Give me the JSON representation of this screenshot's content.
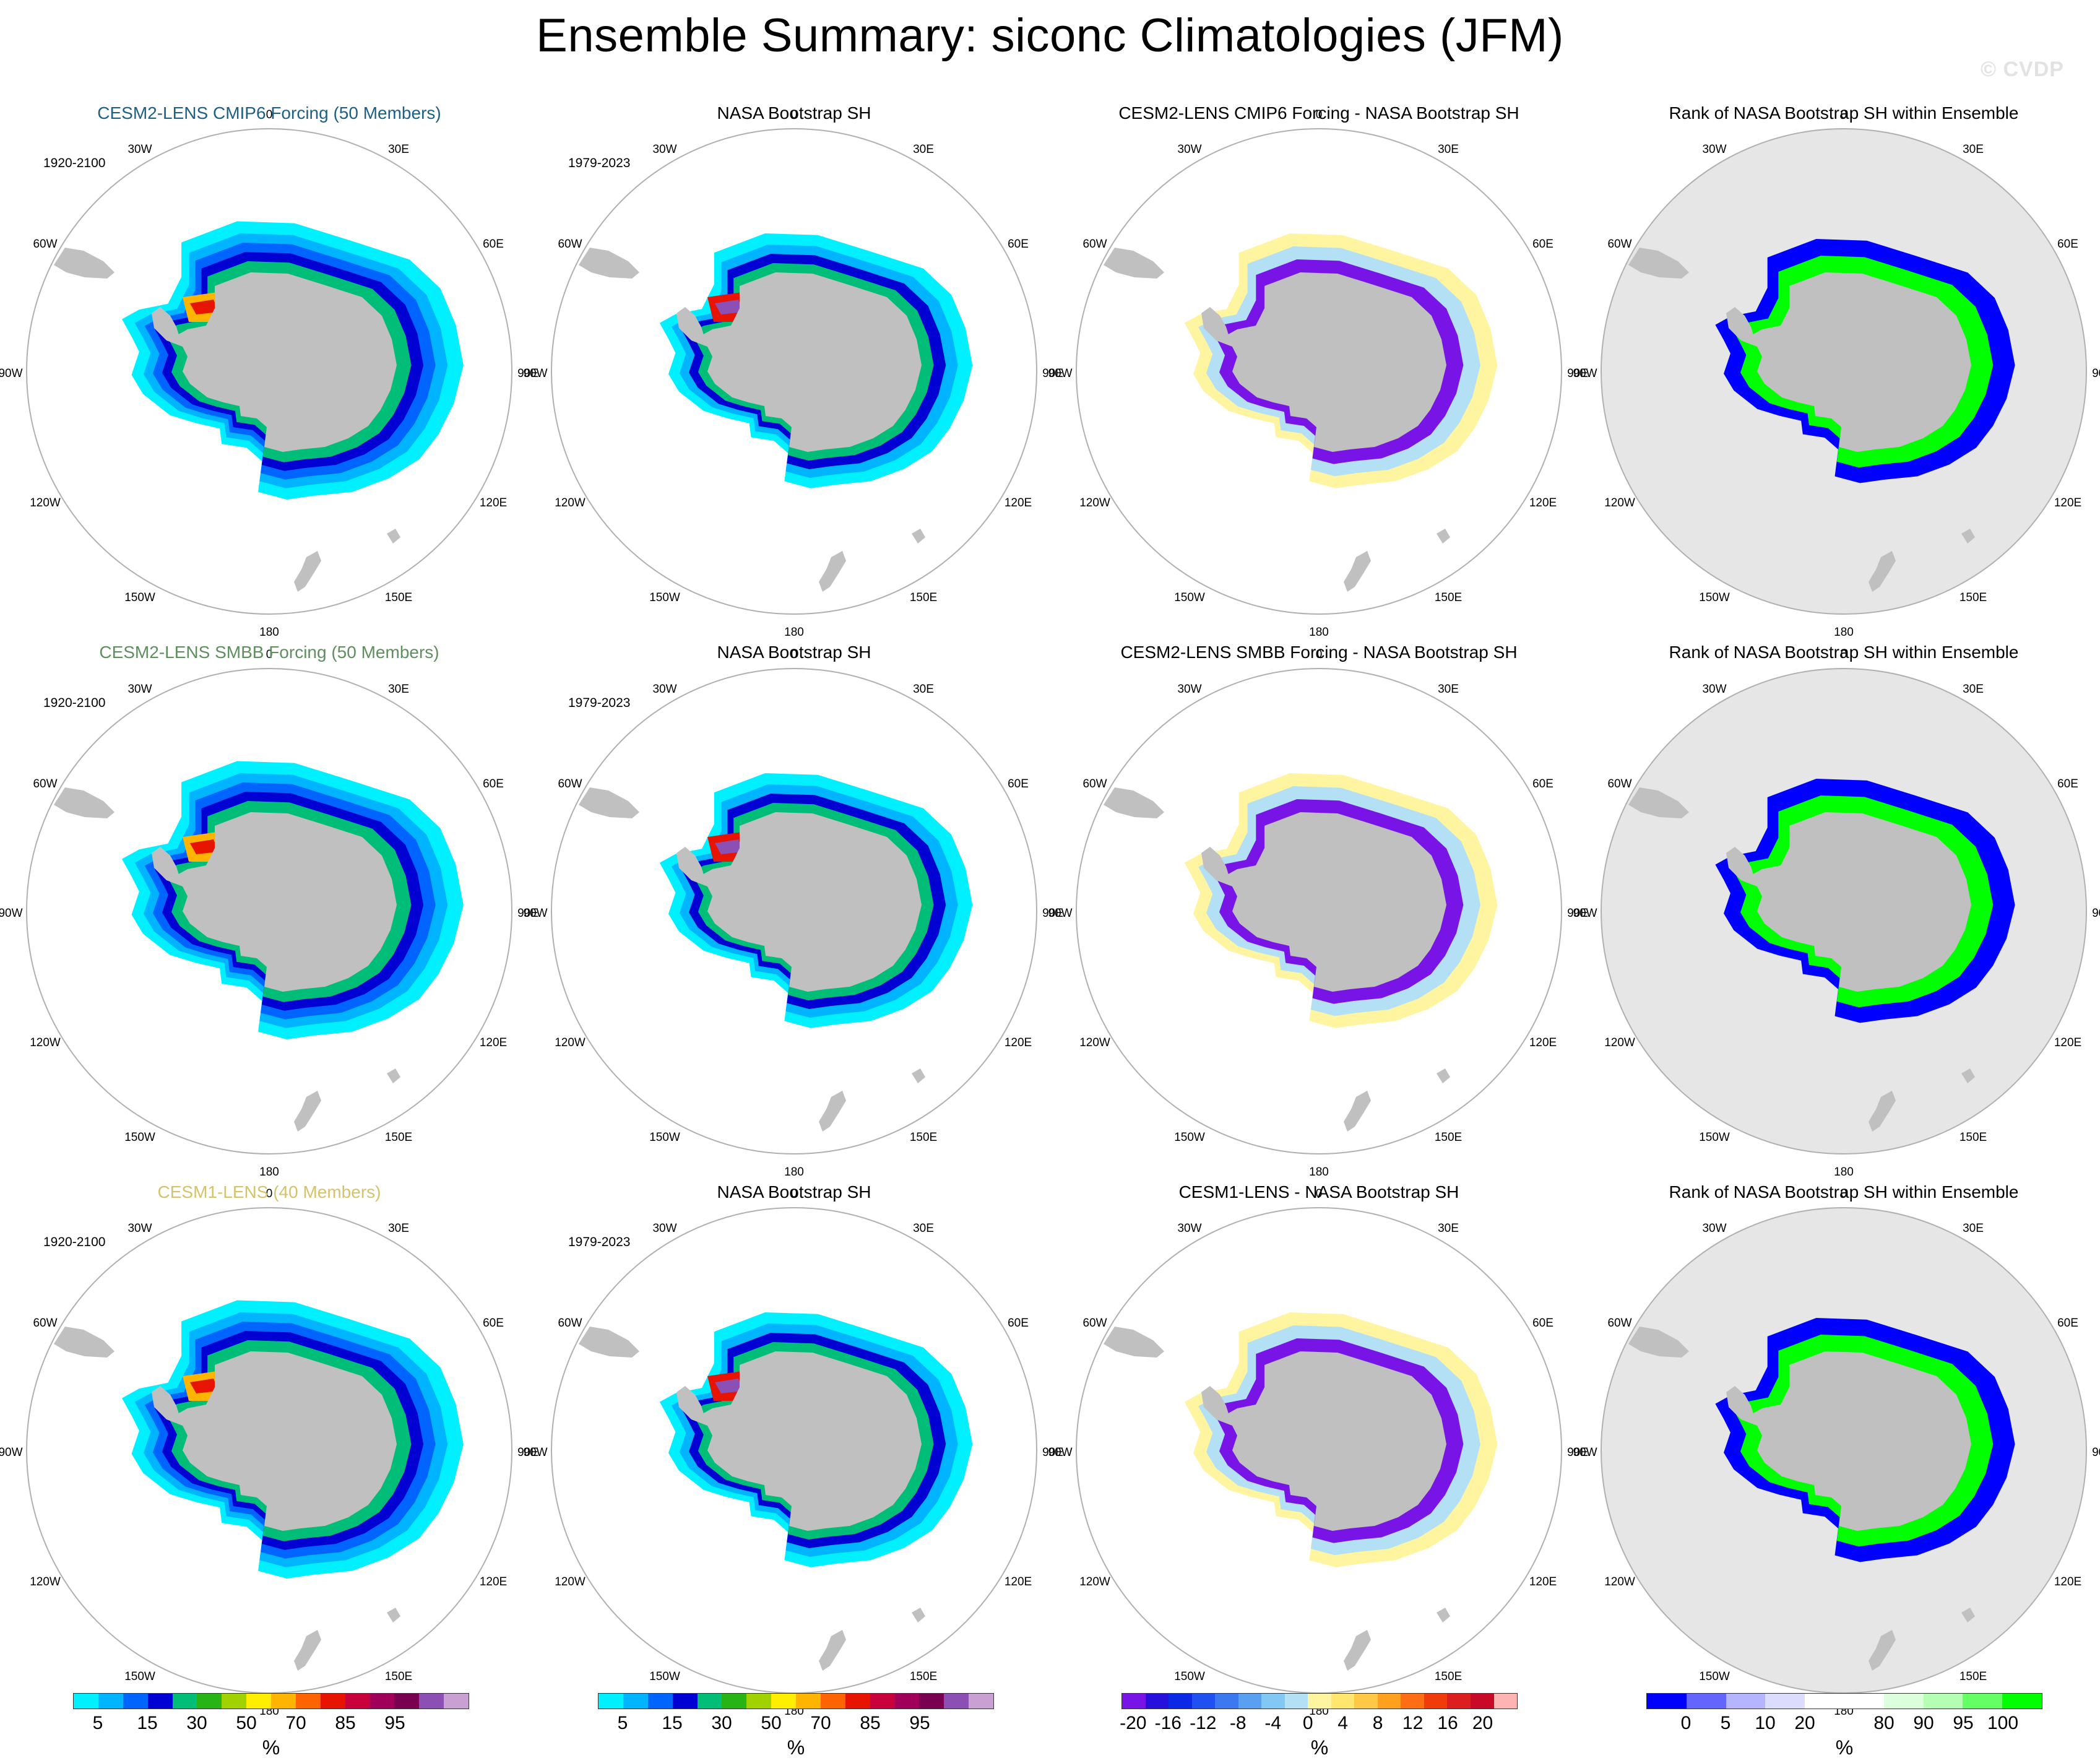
{
  "figure": {
    "title": "Ensemble Summary: siconc Climatologies (JFM)",
    "watermark": "© CVDP"
  },
  "colors": {
    "land": "#c0c0c0",
    "rank_background": "#e6e6e6",
    "circle": "#b0b0b0",
    "row_title_cmip6": "#1e5f84",
    "row_title_smbb": "#5f8f5f",
    "row_title_cesm1": "#d4c36a"
  },
  "lon_labels": [
    "0",
    "30E",
    "60E",
    "90E",
    "120E",
    "150E",
    "180",
    "150W",
    "120W",
    "90W",
    "60W",
    "30W"
  ],
  "rows": [
    {
      "model_title": "CESM2-LENS CMIP6 Forcing (50 Members)",
      "model_title_color": "row_title_cmip6",
      "model_years": "1920-2100",
      "obs_title": "NASA Bootstrap SH",
      "obs_years": "1979-2023",
      "diff_title": "CESM2-LENS CMIP6 Forcing - NASA Bootstrap SH",
      "rank_title": "Rank of NASA Bootstrap SH within Ensemble"
    },
    {
      "model_title": "CESM2-LENS SMBB Forcing (50 Members)",
      "model_title_color": "row_title_smbb",
      "model_years": "1920-2100",
      "obs_title": "NASA Bootstrap SH",
      "obs_years": "1979-2023",
      "diff_title": "CESM2-LENS SMBB Forcing - NASA Bootstrap SH",
      "rank_title": "Rank of NASA Bootstrap SH within Ensemble"
    },
    {
      "model_title": "CESM1-LENS (40 Members)",
      "model_title_color": "row_title_cesm1",
      "model_years": "1920-2100",
      "obs_title": "NASA Bootstrap SH",
      "obs_years": "1979-2023",
      "diff_title": "CESM1-LENS - NASA Bootstrap SH",
      "rank_title": "Rank of NASA Bootstrap SH within Ensemble"
    }
  ],
  "colorbars": [
    {
      "name": "siconc-model",
      "unit": "%",
      "colors": [
        "#00f0ff",
        "#00b4ff",
        "#0064ff",
        "#0000d2",
        "#00be78",
        "#28b414",
        "#a0d200",
        "#ffee00",
        "#ffb400",
        "#ff6400",
        "#e61400",
        "#c8003c",
        "#a0005a",
        "#780050",
        "#8c50b4",
        "#c8a0d2"
      ],
      "labels": [
        "5",
        "15",
        "30",
        "50",
        "70",
        "85",
        "95"
      ],
      "label_slots": [
        1,
        3,
        5,
        7,
        9,
        11,
        13
      ]
    },
    {
      "name": "siconc-obs",
      "unit": "%",
      "colors": [
        "#00f0ff",
        "#00b4ff",
        "#0064ff",
        "#0000d2",
        "#00be78",
        "#28b414",
        "#a0d200",
        "#ffee00",
        "#ffb400",
        "#ff6400",
        "#e61400",
        "#c8003c",
        "#a0005a",
        "#780050",
        "#8c50b4",
        "#c8a0d2"
      ],
      "labels": [
        "5",
        "15",
        "30",
        "50",
        "70",
        "85",
        "95"
      ],
      "label_slots": [
        1,
        3,
        5,
        7,
        9,
        11,
        13
      ]
    },
    {
      "name": "difference",
      "unit": "%",
      "colors": [
        "#7814e6",
        "#2810dc",
        "#0a28e6",
        "#2050f0",
        "#3c78f0",
        "#5aa0f0",
        "#82c8f5",
        "#b4e0f5",
        "#fff5a0",
        "#ffe66e",
        "#ffc846",
        "#ffa01e",
        "#ff6e14",
        "#f03c0a",
        "#dc1e1e",
        "#c80a28",
        "#ffb4b4"
      ],
      "labels": [
        "-20",
        "-16",
        "-12",
        "-8",
        "-4",
        "0",
        "4",
        "8",
        "12",
        "16",
        "20"
      ],
      "label_slots": [
        0.5,
        2,
        3.5,
        5,
        6.5,
        8,
        9.5,
        11,
        12.5,
        14,
        15.5
      ]
    },
    {
      "name": "rank",
      "unit": "%",
      "colors": [
        "#0000ff",
        "#6464ff",
        "#b4b4ff",
        "#dcdcff",
        "#ffffff",
        "#ffffff",
        "#dcffdc",
        "#b4ffb4",
        "#64ff64",
        "#00ff00"
      ],
      "labels": [
        "0",
        "5",
        "10",
        "20",
        "80",
        "90",
        "95",
        "100"
      ],
      "label_slots": [
        1,
        2,
        3,
        4,
        6,
        7,
        8,
        9
      ]
    }
  ]
}
